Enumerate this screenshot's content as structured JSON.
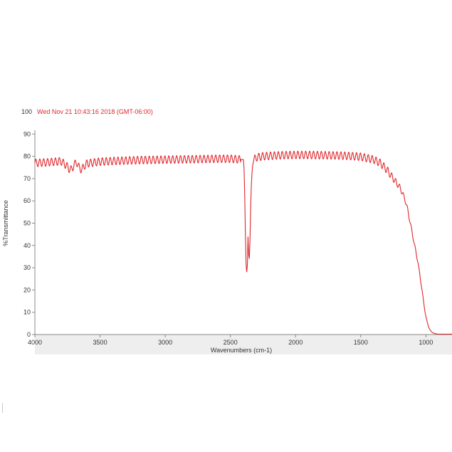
{
  "chart_data": {
    "type": "line",
    "annotation": "Wed Nov 21 10:43:16 2018 (GMT-06:00)",
    "xlabel": "Wavenumbers (cm-1)",
    "ylabel": "%Transmittance",
    "xlim": [
      4000,
      800
    ],
    "ylim": [
      0,
      100
    ],
    "x_reversed": true,
    "grid": false,
    "x_ticks": [
      4000,
      3500,
      3000,
      2500,
      2000,
      1500,
      1000
    ],
    "y_ticks": [
      0,
      10,
      20,
      30,
      40,
      50,
      60,
      70,
      80,
      90,
      100
    ],
    "colors": {
      "line": "#e0262b",
      "annotation": "#e0262b",
      "axis_band": "#eeeeee"
    },
    "series": [
      {
        "x": [
          4000,
          3900,
          3800,
          3760,
          3740,
          3720,
          3700,
          3680,
          3660,
          3640,
          3620,
          3600,
          3550,
          3500,
          3400,
          3300,
          3200,
          3100,
          3000,
          2900,
          2800,
          2700,
          2600,
          2500,
          2400,
          2395,
          2390,
          2385,
          2380,
          2375,
          2370,
          2365,
          2360,
          2355,
          2350,
          2345,
          2340,
          2335,
          2330,
          2320,
          2300,
          2250,
          2200,
          2100,
          2000,
          1900,
          1800,
          1700,
          1600,
          1500,
          1400,
          1350,
          1300,
          1250,
          1200,
          1180,
          1160,
          1140,
          1120,
          1100,
          1080,
          1060,
          1050,
          1040,
          1030,
          1020,
          1010,
          1000,
          990,
          980,
          970,
          960,
          950,
          940,
          930,
          920,
          910,
          900,
          880,
          860,
          840,
          820,
          800
        ],
        "y": [
          77.0,
          77.3,
          77.8,
          76.0,
          74.5,
          74.0,
          76.0,
          77.5,
          74.8,
          74.0,
          75.8,
          76.8,
          77.2,
          77.6,
          77.9,
          78.1,
          78.3,
          78.4,
          78.5,
          78.6,
          78.7,
          78.8,
          78.9,
          78.9,
          78.5,
          74.0,
          62.0,
          45.0,
          32.0,
          28.0,
          31.0,
          44.0,
          36.0,
          34.0,
          42.0,
          56.0,
          66.0,
          72.0,
          75.5,
          78.5,
          79.5,
          80.0,
          80.2,
          80.5,
          80.6,
          80.6,
          80.5,
          80.4,
          80.2,
          79.8,
          78.5,
          77.0,
          74.0,
          70.0,
          66.0,
          63.5,
          60.5,
          56.0,
          50.0,
          44.0,
          38.0,
          32.0,
          28.0,
          24.0,
          20.0,
          15.5,
          11.5,
          8.0,
          5.5,
          3.5,
          2.2,
          1.4,
          0.9,
          0.6,
          0.4,
          0.3,
          0.2,
          0.2,
          0.2,
          0.2,
          0.2,
          0.2,
          0.2
        ],
        "fringe_amplitude": 1.7,
        "fringe_period": 30
      }
    ]
  }
}
